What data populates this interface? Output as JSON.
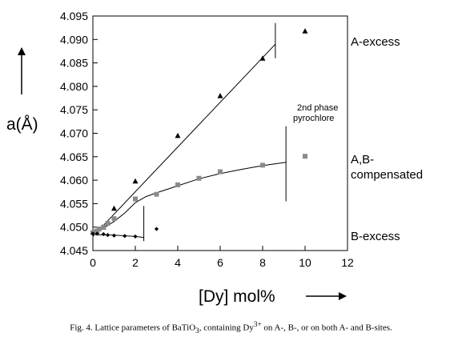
{
  "chart_data": {
    "type": "scatter",
    "ylabel": "a(Å)",
    "xlabel": "[Dy] mol%",
    "xlim": [
      0,
      12
    ],
    "ylim": [
      4.045,
      4.095
    ],
    "x_ticks": [
      "0",
      "2",
      "4",
      "6",
      "8",
      "10",
      "12"
    ],
    "y_ticks": [
      "4.045",
      "4.050",
      "4.055",
      "4.060",
      "4.065",
      "4.070",
      "4.075",
      "4.080",
      "4.085",
      "4.090",
      "4.095"
    ],
    "series": [
      {
        "name": "A-excess",
        "marker": "triangle",
        "points": [
          [
            0,
            4.049
          ],
          [
            0.5,
            4.05
          ],
          [
            1,
            4.054
          ],
          [
            2,
            4.0598
          ],
          [
            4,
            4.0695
          ],
          [
            6,
            4.078
          ],
          [
            8,
            4.086
          ],
          [
            10,
            4.0918
          ]
        ],
        "fit": [
          [
            0,
            4.048
          ],
          [
            8.6,
            4.089
          ]
        ]
      },
      {
        "name": "A,B-compensated",
        "marker": "square",
        "points": [
          [
            0,
            4.0488
          ],
          [
            0.1,
            4.049
          ],
          [
            0.2,
            4.0492
          ],
          [
            0.3,
            4.0496
          ],
          [
            0.5,
            4.05
          ],
          [
            0.7,
            4.0508
          ],
          [
            1,
            4.0518
          ],
          [
            2,
            4.056
          ],
          [
            3,
            4.057
          ],
          [
            4,
            4.059
          ],
          [
            5,
            4.0604
          ],
          [
            6,
            4.0618
          ],
          [
            8,
            4.0632
          ],
          [
            10,
            4.0651
          ]
        ],
        "fit": [
          [
            0,
            4.0484
          ],
          [
            0.5,
            4.0498
          ],
          [
            1,
            4.0512
          ],
          [
            1.5,
            4.053
          ],
          [
            2,
            4.0552
          ],
          [
            2.5,
            4.0565
          ],
          [
            3,
            4.0573
          ],
          [
            4,
            4.0588
          ],
          [
            5,
            4.0603
          ],
          [
            6,
            4.0614
          ],
          [
            7,
            4.0623
          ],
          [
            8,
            4.0631
          ],
          [
            9.1,
            4.0638
          ]
        ]
      },
      {
        "name": "B-excess",
        "marker": "diamond",
        "points": [
          [
            0,
            4.0486
          ],
          [
            0.2,
            4.0486
          ],
          [
            0.5,
            4.0485
          ],
          [
            0.7,
            4.0483
          ],
          [
            1,
            4.0482
          ],
          [
            1.5,
            4.0481
          ],
          [
            2,
            4.048
          ],
          [
            3,
            4.0496
          ]
        ],
        "fit": [
          [
            0,
            4.0484
          ],
          [
            1,
            4.0483
          ],
          [
            2,
            4.048
          ],
          [
            2.4,
            4.0478
          ]
        ]
      }
    ],
    "limit_lines": [
      {
        "x": 8.6,
        "y": [
          4.086,
          4.0935
        ]
      },
      {
        "x": 9.1,
        "y": [
          4.0555,
          4.0715
        ]
      },
      {
        "x": 2.4,
        "y": [
          4.047,
          4.0545
        ]
      }
    ],
    "annotation": [
      "2nd phase",
      "pyrochlore"
    ],
    "caption_parts": [
      "Fig. 4.  Lattice parameters of BaTiO",
      "3",
      ", containing Dy",
      "3+",
      " on A-, B-, or on both A- and B-sites."
    ]
  }
}
